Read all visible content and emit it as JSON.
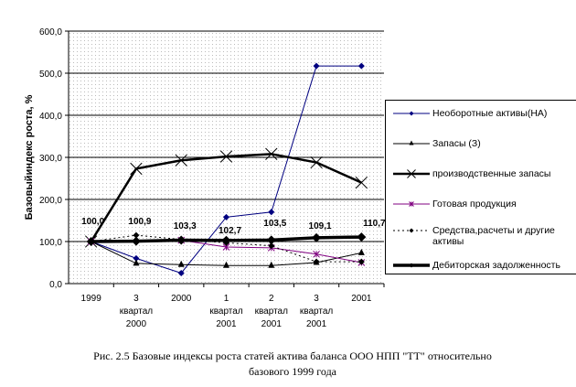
{
  "chart_data": {
    "type": "line",
    "ylabel": "Базовыйиндекс роста, %",
    "ylim": [
      0,
      600
    ],
    "yticks": [
      "0,0",
      "100,0",
      "200,0",
      "300,0",
      "400,0",
      "500,0",
      "600,0"
    ],
    "categories": [
      [
        "1999"
      ],
      [
        "3",
        "квартал",
        "2000"
      ],
      [
        "2000"
      ],
      [
        "1",
        "квартал",
        "2001"
      ],
      [
        "2",
        "квартал",
        "2001"
      ],
      [
        "3",
        "квартал",
        "2001"
      ],
      [
        "2001"
      ]
    ],
    "series": [
      {
        "name": "Необоротные активы(НА)",
        "color": "#000080",
        "marker": "diamond",
        "values": [
          100,
          60,
          25,
          158,
          170,
          517,
          517
        ]
      },
      {
        "name": "Запасы (З)",
        "color": "#000000",
        "marker": "triangle",
        "values": [
          100,
          48,
          45,
          43,
          43,
          50,
          73
        ]
      },
      {
        "name": "производственные запасы",
        "color": "#000000",
        "marker": "x",
        "width": 2.5,
        "values": [
          100,
          273,
          293,
          302,
          308,
          288,
          240
        ]
      },
      {
        "name": "Готовая продукция",
        "color": "#800080",
        "marker": "star",
        "values": [
          100,
          null,
          103,
          87,
          85,
          70,
          50
        ]
      },
      {
        "name": "Средства,расчеты и другие активы",
        "color": "#000000",
        "marker": "diamond",
        "dash": true,
        "values": [
          100,
          115,
          105,
          97,
          90,
          52,
          52
        ]
      },
      {
        "name": "Дебиторская задолженность",
        "color": "#000000",
        "marker": "diamond",
        "width": 3.5,
        "values": [
          100,
          100.9,
          103.3,
          102.7,
          103.5,
          109.1,
          110.7
        ]
      }
    ],
    "data_labels": [
      "100,0",
      "100,9",
      "103,3",
      "102,7",
      "103,5",
      "109,1",
      "110,7"
    ],
    "legend_position": "right"
  },
  "caption": {
    "line1": "Рис. 2.5 Базовые индексы роста статей актива баланса ООО НПП \"ТТ\" относительно",
    "line2": "базового 1999 года"
  }
}
